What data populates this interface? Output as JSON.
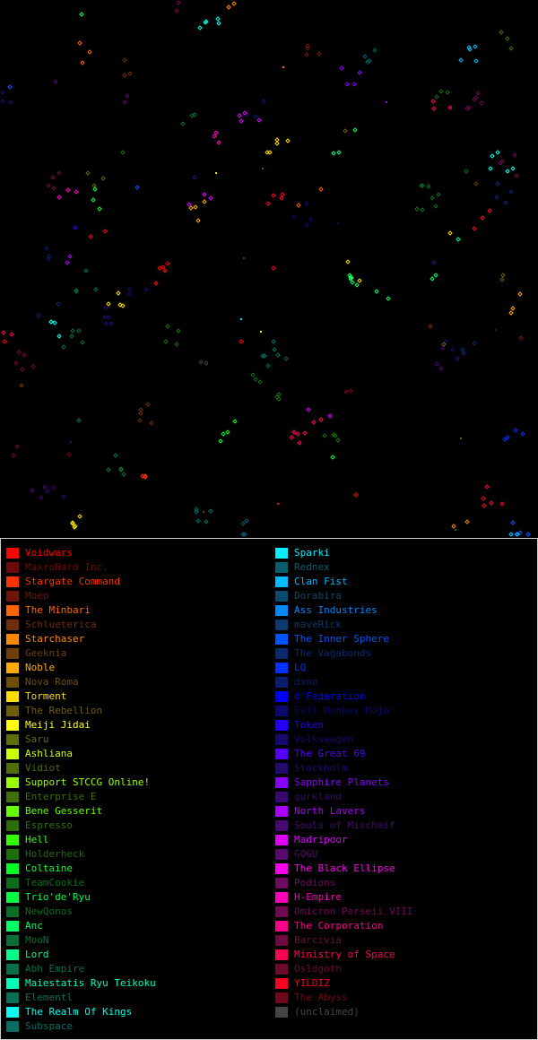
{
  "legend": {
    "left": [
      {
        "label": "Voidwars",
        "color": "#ff0000"
      },
      {
        "label": "MaxroHard Inc.",
        "color": "#6e0a0a"
      },
      {
        "label": "Stargate Command",
        "color": "#ff3300"
      },
      {
        "label": "Moep",
        "color": "#6e160a"
      },
      {
        "label": "The Minbari",
        "color": "#ff6600"
      },
      {
        "label": "Schlueterica",
        "color": "#6e2e0a"
      },
      {
        "label": "Starchaser",
        "color": "#ff8800"
      },
      {
        "label": "Geeknia",
        "color": "#6e3f0a"
      },
      {
        "label": "Noble",
        "color": "#ffaa00"
      },
      {
        "label": "Nova Roma",
        "color": "#6e4f0a"
      },
      {
        "label": "Torment",
        "color": "#ffdd00"
      },
      {
        "label": "The Rebellion",
        "color": "#6e5e0a"
      },
      {
        "label": "Meiji Jidai",
        "color": "#ffff00"
      },
      {
        "label": "Saru",
        "color": "#5e6e0a"
      },
      {
        "label": "Ashliana",
        "color": "#ccff00"
      },
      {
        "label": "Vidiot",
        "color": "#4f6e0a"
      },
      {
        "label": "Support STCCG Online!",
        "color": "#99ff00"
      },
      {
        "label": "Enterprise E",
        "color": "#3f6e0a"
      },
      {
        "label": "Bene Gesserit",
        "color": "#66ff00"
      },
      {
        "label": "Espresso",
        "color": "#2e6e0a"
      },
      {
        "label": "Hell",
        "color": "#33ff00"
      },
      {
        "label": "Holderheck",
        "color": "#1e6e0a"
      },
      {
        "label": "Coltaine",
        "color": "#00ff22"
      },
      {
        "label": "TeamCookie",
        "color": "#0a6e1a"
      },
      {
        "label": "Trio'de'Ryu",
        "color": "#00ff44"
      },
      {
        "label": "NewQonos",
        "color": "#0a6e26"
      },
      {
        "label": "Anc",
        "color": "#00ff66"
      },
      {
        "label": "MooN",
        "color": "#0a6e36"
      },
      {
        "label": "Lord",
        "color": "#00ff88"
      },
      {
        "label": "Abh Empire",
        "color": "#0a6e46"
      },
      {
        "label": "Maiestatis Ryu Teikoku",
        "color": "#00ffbb"
      },
      {
        "label": "Elementl",
        "color": "#0a6e56"
      },
      {
        "label": "The Realm Of Kings",
        "color": "#00ffee"
      },
      {
        "label": "Subspace",
        "color": "#0a6e66"
      }
    ],
    "right": [
      {
        "label": "Sparki",
        "color": "#00eeff"
      },
      {
        "label": "Rednex",
        "color": "#0a5e6e"
      },
      {
        "label": "Clan Fist",
        "color": "#00bbff"
      },
      {
        "label": "Dorabira",
        "color": "#0a4a6e"
      },
      {
        "label": "Ass Industries",
        "color": "#0088ff"
      },
      {
        "label": "maveRick",
        "color": "#0a3a6e"
      },
      {
        "label": "The Inner Sphere",
        "color": "#0055ff"
      },
      {
        "label": "The Vagabonds",
        "color": "#0a2a6e"
      },
      {
        "label": "LQ",
        "color": "#0033ff"
      },
      {
        "label": "dxno",
        "color": "#0a1e6e"
      },
      {
        "label": "d'Federation",
        "color": "#0000ff"
      },
      {
        "label": "Evil Monkey Mojo",
        "color": "#0a0a6e"
      },
      {
        "label": "Token",
        "color": "#2200ff"
      },
      {
        "label": "Volkswagen",
        "color": "#160a6e"
      },
      {
        "label": "The Great 69",
        "color": "#5500ff"
      },
      {
        "label": "Stockholm",
        "color": "#260a6e"
      },
      {
        "label": "Sapphire Planets",
        "color": "#8800ff"
      },
      {
        "label": "gurkland",
        "color": "#360a6e"
      },
      {
        "label": "North Lavers",
        "color": "#aa00ff"
      },
      {
        "label": "Souls of Mischeif",
        "color": "#460a6e"
      },
      {
        "label": "Madripoor",
        "color": "#dd00ff"
      },
      {
        "label": "GOGU",
        "color": "#5a0a6e"
      },
      {
        "label": "The Black Ellipse",
        "color": "#ff00ee"
      },
      {
        "label": "Podions",
        "color": "#6e0a62"
      },
      {
        "label": "H-Empire",
        "color": "#ff00bb"
      },
      {
        "label": "Omicron Perseii VIII",
        "color": "#6e0a52"
      },
      {
        "label": "The Corporation",
        "color": "#ff0088"
      },
      {
        "label": "Barcivia",
        "color": "#6e0a42"
      },
      {
        "label": "Ministry of Space",
        "color": "#ff0055"
      },
      {
        "label": "Osldgoth",
        "color": "#6e0a2e"
      },
      {
        "label": "YILDIZ",
        "color": "#ff0022"
      },
      {
        "label": "The Abyss",
        "color": "#6e0a1a"
      },
      {
        "label": "(unclaimed)",
        "color": "#444444"
      }
    ]
  },
  "map": {
    "background": "#000000"
  }
}
